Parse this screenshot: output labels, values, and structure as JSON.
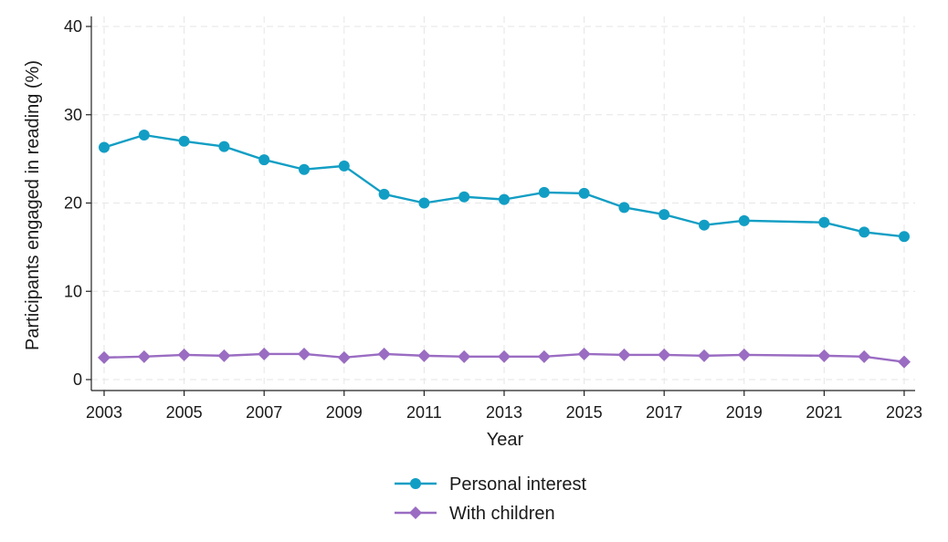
{
  "colors": {
    "personal": "#129ec4",
    "children": "#9a6cc2",
    "grid": "#e6e6e6",
    "axis": "#222222"
  },
  "chart_data": {
    "type": "line",
    "title": "",
    "xlabel": "Year",
    "ylabel": "Participants engaged in reading (%)",
    "xlim": [
      2003,
      2023
    ],
    "ylim": [
      0,
      40
    ],
    "x_ticks": [
      "2003",
      "2005",
      "2007",
      "2009",
      "2011",
      "2013",
      "2015",
      "2017",
      "2019",
      "2021",
      "2023"
    ],
    "y_ticks": [
      "0",
      "10",
      "20",
      "30",
      "40"
    ],
    "grid": true,
    "legend_position": "bottom-center",
    "series": [
      {
        "name": "Personal interest",
        "marker": "circle",
        "color_key": "personal",
        "x": [
          2003,
          2004,
          2005,
          2006,
          2007,
          2008,
          2009,
          2010,
          2011,
          2012,
          2013,
          2014,
          2015,
          2016,
          2017,
          2018,
          2019,
          2021,
          2022,
          2023
        ],
        "values": [
          26.3,
          27.7,
          27.0,
          26.4,
          24.9,
          23.8,
          24.2,
          21.0,
          20.0,
          20.7,
          20.4,
          21.2,
          21.1,
          19.5,
          18.7,
          17.5,
          18.0,
          17.8,
          16.7,
          16.2
        ]
      },
      {
        "name": "With children",
        "marker": "diamond",
        "color_key": "children",
        "x": [
          2003,
          2004,
          2005,
          2006,
          2007,
          2008,
          2009,
          2010,
          2011,
          2012,
          2013,
          2014,
          2015,
          2016,
          2017,
          2018,
          2019,
          2021,
          2022,
          2023
        ],
        "values": [
          2.5,
          2.6,
          2.8,
          2.7,
          2.9,
          2.9,
          2.5,
          2.9,
          2.7,
          2.6,
          2.6,
          2.6,
          2.9,
          2.8,
          2.8,
          2.7,
          2.8,
          2.7,
          2.6,
          2.0
        ]
      }
    ]
  }
}
